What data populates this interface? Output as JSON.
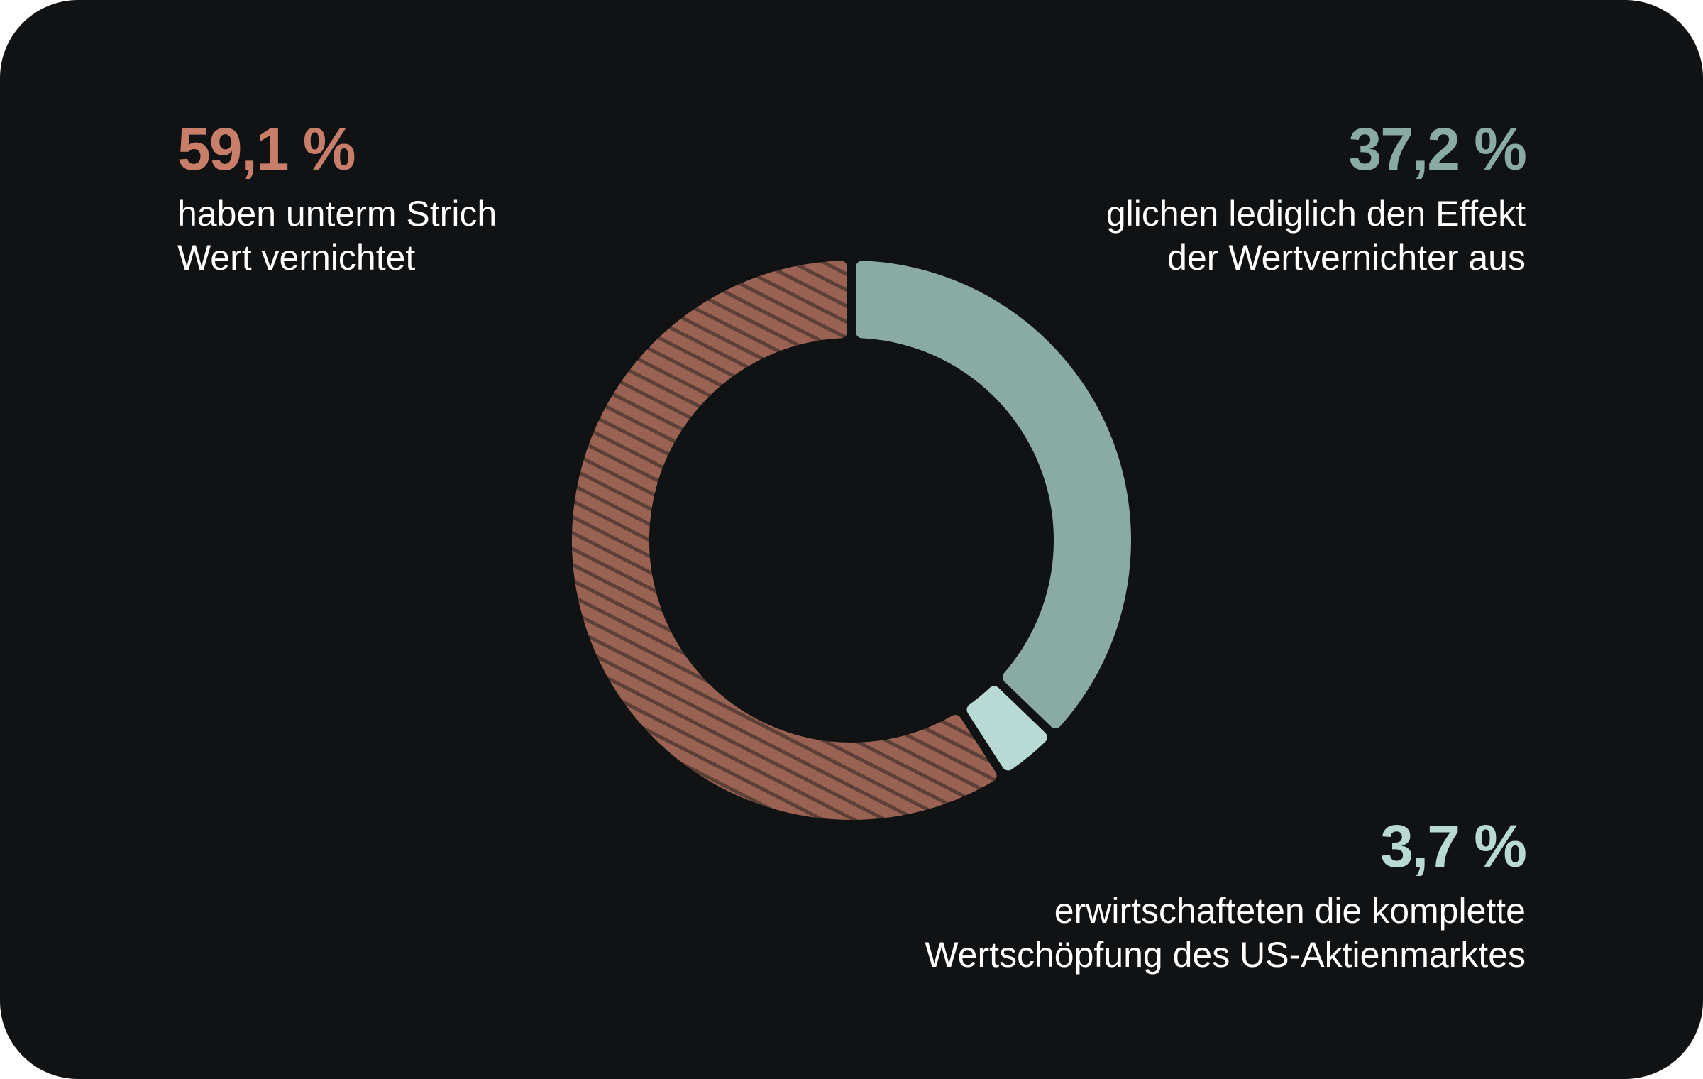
{
  "chart_data": {
    "type": "pie",
    "variant": "donut",
    "start": "top",
    "direction": "clockwise",
    "slices": [
      {
        "value": 37.2,
        "label": "37,2 %",
        "description": [
          "glichen lediglich den Effekt",
          "der Wertvernichter aus"
        ],
        "color": "#8aaaa4",
        "text_color": "#8aaaa4",
        "hatched": false
      },
      {
        "value": 3.7,
        "label": "3,7 %",
        "description": [
          "erwirtschafteten die komplette",
          "Wertschöpfung des US-Aktienmarktes"
        ],
        "color": "#b8d9d4",
        "text_color": "#b8d9d4",
        "hatched": false
      },
      {
        "value": 59.1,
        "label": "59,1 %",
        "description": [
          "haben unterm Strich",
          "Wert vernichtet"
        ],
        "color": "#9a6253",
        "text_color": "#c97e6a",
        "hatched": true,
        "hatch_color": "#5c3f36"
      }
    ]
  },
  "background": "#101214"
}
